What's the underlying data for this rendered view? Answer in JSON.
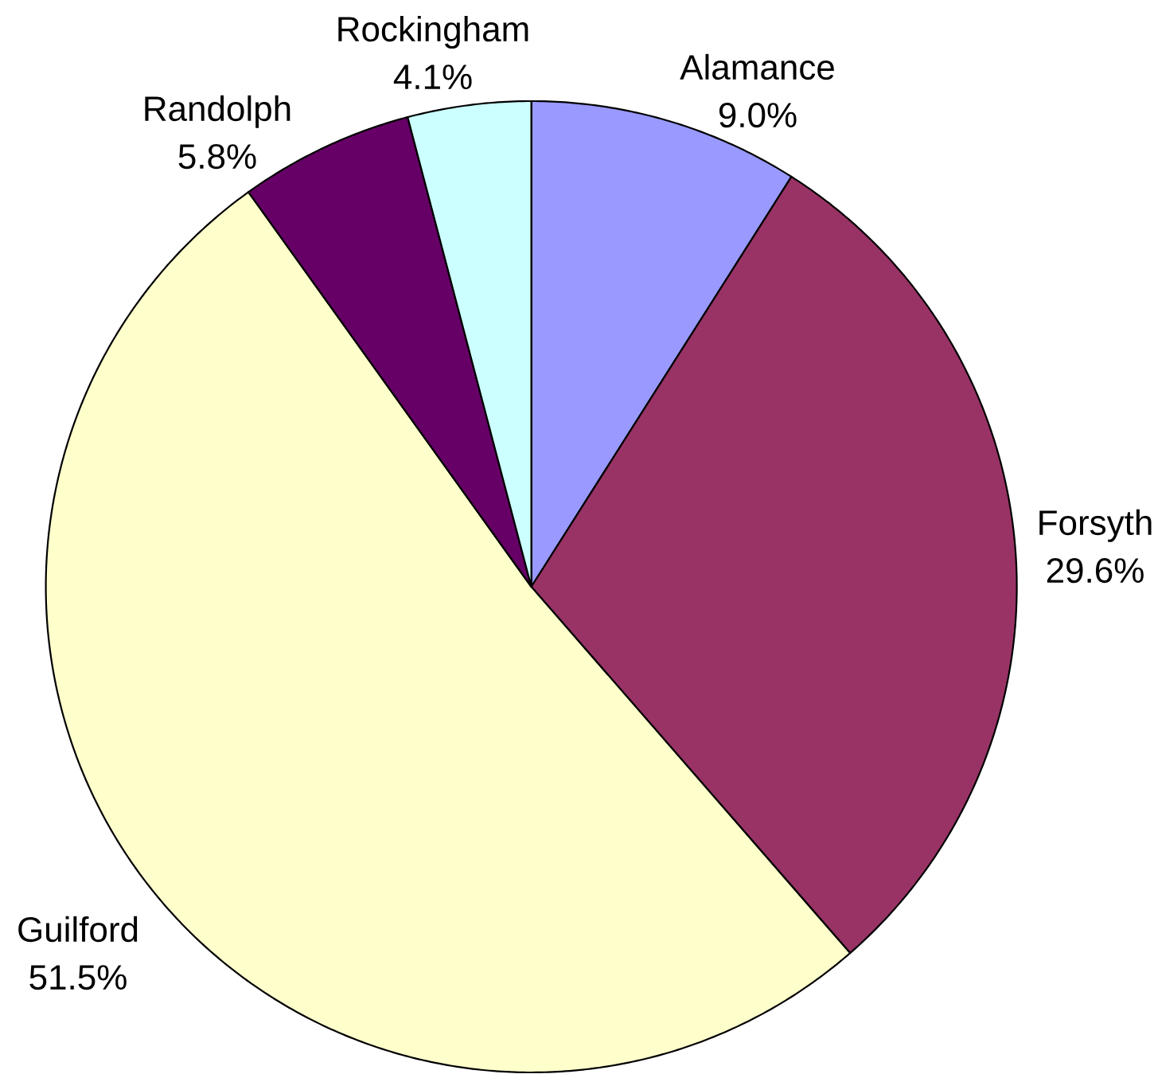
{
  "chart_data": {
    "type": "pie",
    "categories": [
      "Alamance",
      "Forsyth",
      "Guilford",
      "Randolph",
      "Rockingham"
    ],
    "values": [
      9.0,
      29.6,
      51.5,
      5.8,
      4.1
    ],
    "colors": [
      "#9999ff",
      "#993366",
      "#ffffcc",
      "#660066",
      "#ccffff"
    ],
    "value_labels": [
      "9.0%",
      "29.6%",
      "51.5%",
      "5.8%",
      "4.1%"
    ]
  }
}
